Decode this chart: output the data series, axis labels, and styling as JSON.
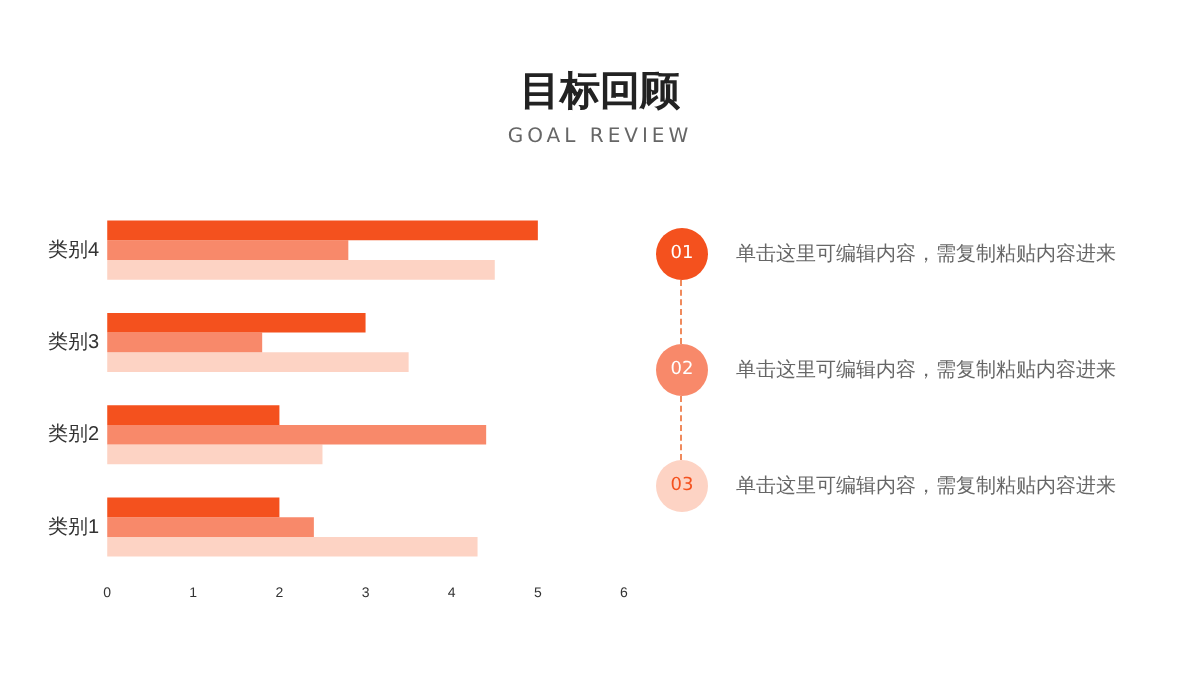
{
  "chart_data": [
    {
      "type": "bar",
      "title": "目标回顾",
      "subtitle": "GOAL REVIEW",
      "orientation": "horizontal",
      "categories": [
        "类别4",
        "类别3",
        "类别2",
        "类别1"
      ],
      "series": [
        {
          "color": "#f4511e",
          "values": [
            5,
            3,
            2,
            2
          ]
        },
        {
          "color": "#f8896a",
          "values": [
            2.8,
            1.8,
            4.4,
            2.4
          ]
        },
        {
          "color": "#fdd3c4",
          "values": [
            4.5,
            3.5,
            2.5,
            4.3
          ]
        }
      ],
      "xlim": [
        0,
        6
      ],
      "xticks": [
        0,
        1,
        2,
        3,
        4,
        5,
        6
      ],
      "grid": false,
      "legend": false
    },
    {
      "type": "other",
      "annotations": [
        "01",
        "单击这里可编辑内容，需复制粘贴内容进来",
        "02",
        "单击这里可编辑内容，需复制粘贴内容进来",
        "03",
        "单击这里可编辑内容，需复制粘贴内容进来"
      ]
    }
  ]
}
